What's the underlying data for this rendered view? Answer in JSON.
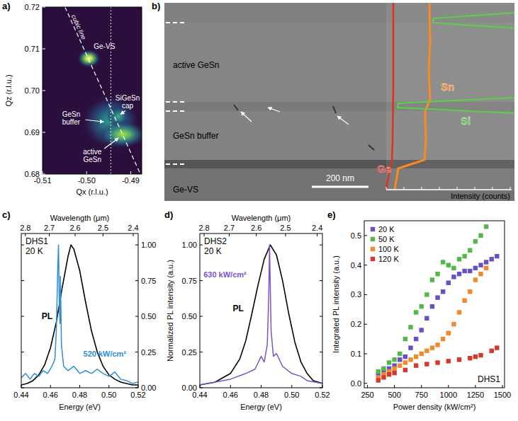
{
  "chart_data": [
    {
      "panel": "a)",
      "type": "heatmap",
      "x_label": "Qx (r.l.u.)",
      "y_label": "Qz (r.l.u.)",
      "xlim": [
        -0.51,
        -0.4875
      ],
      "ylim": [
        0.68,
        0.72
      ],
      "xticks": [
        -0.51,
        {
          "value": -0.5,
          "label": "-0.50"
        },
        -0.49
      ],
      "yticks": [
        0.68,
        0.69,
        {
          "value": 0.7,
          "label": "0.70"
        },
        0.71,
        0.72
      ],
      "peaks": [
        {
          "name": "GeSn buffer",
          "x": -0.4945,
          "y": 0.6925,
          "width": 0.003,
          "height": 0.003,
          "intensity": 0.55
        },
        {
          "name": "SiGeSn cap",
          "x": -0.4928,
          "y": 0.6938,
          "width": 0.0012,
          "height": 0.0012,
          "intensity": 0.6
        },
        {
          "name": "active GeSn",
          "x": -0.4918,
          "y": 0.6895,
          "width": 0.0025,
          "height": 0.0015,
          "intensity": 0.8
        },
        {
          "name": "Ge-VS",
          "x": -0.4995,
          "y": 0.7077,
          "width": 0.0012,
          "height": 0.001,
          "intensity": 1.0
        }
      ],
      "cubic_line": {
        "label": "cubic line",
        "x": [
          -0.5049,
          -0.4878
        ],
        "y": [
          0.72,
          0.68
        ]
      },
      "vline": -0.4945
    },
    {
      "panel": "c)",
      "type": "line",
      "title": "DHS1",
      "subtitle": "20 K",
      "x_label": "Energy (eV)",
      "x2_label": "Wavelength (μm)",
      "xlim": [
        0.44,
        0.52
      ],
      "xticks": [
        0.44,
        0.46,
        0.48,
        {
          "value": 0.5,
          "label": "0.50"
        },
        0.52
      ],
      "x2ticks": [
        2.8,
        2.7,
        2.6,
        2.5,
        2.4
      ],
      "y2lim": [
        0,
        1.08
      ],
      "y2ticks": [
        {
          "value": 0,
          "label": "0.00"
        },
        0.25,
        {
          "value": 0.5,
          "label": "0.50"
        },
        0.75,
        {
          "value": 1,
          "label": "1.00"
        }
      ],
      "series": [
        {
          "name": "PL",
          "color": "#000000",
          "axis": "y2",
          "x": [
            0.44,
            0.444,
            0.448,
            0.452,
            0.456,
            0.46,
            0.464,
            0.468,
            0.472,
            0.474,
            0.476,
            0.48,
            0.484,
            0.488,
            0.492,
            0.496,
            0.5,
            0.504,
            0.508,
            0.512,
            0.516,
            0.52
          ],
          "values": [
            0.02,
            0.03,
            0.05,
            0.09,
            0.16,
            0.28,
            0.46,
            0.7,
            0.92,
            1.0,
            0.97,
            0.82,
            0.6,
            0.4,
            0.25,
            0.15,
            0.09,
            0.06,
            0.04,
            0.03,
            0.02,
            0.02
          ]
        },
        {
          "name": "520 kW/cm²",
          "color": "#2a8fd6",
          "axis": "y2",
          "x": [
            0.44,
            0.443,
            0.446,
            0.449,
            0.452,
            0.455,
            0.458,
            0.461,
            0.463,
            0.464,
            0.465,
            0.4655,
            0.466,
            0.4665,
            0.4668,
            0.4675,
            0.469,
            0.472,
            0.476,
            0.48,
            0.484,
            0.488,
            0.492,
            0.496,
            0.5,
            0.504,
            0.508,
            0.512,
            0.516,
            0.52
          ],
          "values": [
            0.07,
            0.1,
            0.06,
            0.1,
            0.08,
            0.12,
            0.1,
            0.15,
            0.2,
            0.4,
            0.85,
            1.0,
            0.6,
            0.45,
            0.78,
            0.3,
            0.15,
            0.12,
            0.15,
            0.1,
            0.12,
            0.1,
            0.13,
            0.1,
            0.08,
            0.11,
            0.06,
            0.05,
            0.03,
            0.04
          ]
        }
      ]
    },
    {
      "panel": "d)",
      "type": "line",
      "title": "DHS2",
      "subtitle": "20 K",
      "x_label": "Energy (eV)",
      "x2_label": "Wavelength (μm)",
      "y_label": "Normalized PL intensity (a.u.)",
      "xlim": [
        0.44,
        0.52
      ],
      "xticks": [
        0.44,
        0.46,
        0.48,
        {
          "value": 0.5,
          "label": "0.50"
        },
        0.52
      ],
      "x2ticks": [
        2.8,
        2.7,
        2.6,
        2.5,
        2.4
      ],
      "ylim": [
        0,
        1.08
      ],
      "yticks": [
        {
          "value": 0,
          "label": "0.00"
        },
        0.25,
        {
          "value": 0.5,
          "label": "0.50"
        },
        0.75,
        {
          "value": 1,
          "label": "1.00"
        }
      ],
      "series": [
        {
          "name": "PL",
          "color": "#000000",
          "x": [
            0.44,
            0.45,
            0.46,
            0.466,
            0.47,
            0.474,
            0.478,
            0.482,
            0.486,
            0.49,
            0.494,
            0.498,
            0.502,
            0.506,
            0.51,
            0.514,
            0.52
          ],
          "values": [
            0.02,
            0.04,
            0.1,
            0.2,
            0.33,
            0.52,
            0.72,
            0.9,
            1.0,
            0.93,
            0.75,
            0.52,
            0.32,
            0.18,
            0.1,
            0.05,
            0.03
          ]
        },
        {
          "name": "630 kW/cm²",
          "color": "#7b55c8",
          "x": [
            0.44,
            0.45,
            0.46,
            0.47,
            0.476,
            0.48,
            0.482,
            0.484,
            0.485,
            0.4855,
            0.486,
            0.4865,
            0.488,
            0.49,
            0.494,
            0.5,
            0.506,
            0.51,
            0.52
          ],
          "values": [
            0.02,
            0.04,
            0.06,
            0.1,
            0.13,
            0.22,
            0.18,
            0.3,
            0.65,
            1.0,
            0.7,
            0.4,
            0.22,
            0.24,
            0.15,
            0.1,
            0.08,
            0.05,
            0.03
          ]
        }
      ]
    },
    {
      "panel": "e)",
      "type": "scatter",
      "title": "DHS1",
      "x_label": "Power density (kW/cm²)",
      "y_label": "Integrated PL intensity (a.u.)",
      "xlim": [
        220,
        1520
      ],
      "xticks": [
        250,
        500,
        750,
        1000,
        1250,
        1500
      ],
      "ylim": [
        -0.015,
        0.55
      ],
      "yticks": [
        {
          "value": 0,
          "label": "0.0"
        },
        0.1,
        0.2,
        0.3,
        0.4,
        0.5
      ],
      "legend": "top-left",
      "marker": "square",
      "series": [
        {
          "name": "20 K",
          "color": "#6a4fc4",
          "x": [
            350,
            400,
            450,
            500,
            550,
            600,
            650,
            700,
            750,
            800,
            850,
            900,
            950,
            1000,
            1050,
            1100,
            1150,
            1200,
            1250,
            1300,
            1350,
            1400,
            1450
          ],
          "values": [
            0.03,
            0.04,
            0.05,
            0.06,
            0.08,
            0.09,
            0.12,
            0.15,
            0.18,
            0.22,
            0.26,
            0.29,
            0.31,
            0.34,
            0.36,
            0.37,
            0.38,
            0.38,
            0.39,
            0.4,
            0.41,
            0.42,
            0.43
          ]
        },
        {
          "name": "50 K",
          "color": "#52b848",
          "x": [
            350,
            400,
            450,
            500,
            550,
            600,
            650,
            700,
            750,
            800,
            850,
            900,
            950,
            1000,
            1050,
            1100,
            1150,
            1200,
            1250,
            1300,
            1350
          ],
          "values": [
            0.04,
            0.05,
            0.07,
            0.08,
            0.1,
            0.15,
            0.19,
            0.24,
            0.26,
            0.3,
            0.35,
            0.37,
            0.41,
            0.4,
            0.39,
            0.42,
            0.43,
            0.45,
            0.48,
            0.5,
            0.53
          ]
        },
        {
          "name": "100 K",
          "color": "#f08a2c",
          "x": [
            350,
            400,
            450,
            500,
            550,
            600,
            650,
            700,
            750,
            800,
            850,
            900,
            950,
            1000,
            1050,
            1100,
            1150,
            1200,
            1250,
            1300,
            1350
          ],
          "values": [
            0.02,
            0.03,
            0.04,
            0.05,
            0.06,
            0.07,
            0.08,
            0.09,
            0.1,
            0.11,
            0.12,
            0.13,
            0.15,
            0.17,
            0.2,
            0.24,
            0.28,
            0.31,
            0.35,
            0.37,
            0.39
          ]
        },
        {
          "name": "120 K",
          "color": "#d8372b",
          "x": [
            350,
            400,
            450,
            500,
            600,
            700,
            800,
            900,
            1000,
            1100,
            1200,
            1250,
            1300,
            1400,
            1450
          ],
          "values": [
            0.01,
            0.02,
            0.03,
            0.035,
            0.045,
            0.06,
            0.065,
            0.07,
            0.075,
            0.08,
            0.085,
            0.09,
            0.095,
            0.11,
            0.12
          ]
        }
      ]
    }
  ],
  "panel_b": {
    "panel": "b)",
    "layers": [
      "active GeSn",
      "GeSn buffer",
      "Ge-VS"
    ],
    "scale_bar": "200 nm",
    "profiles": [
      {
        "name": "Sn",
        "color": "#ff8a1c"
      },
      {
        "name": "Si",
        "color": "#5ccf4a"
      },
      {
        "name": "Ge",
        "color": "#e0301e"
      }
    ],
    "x_label": "Intensity (counts)"
  }
}
